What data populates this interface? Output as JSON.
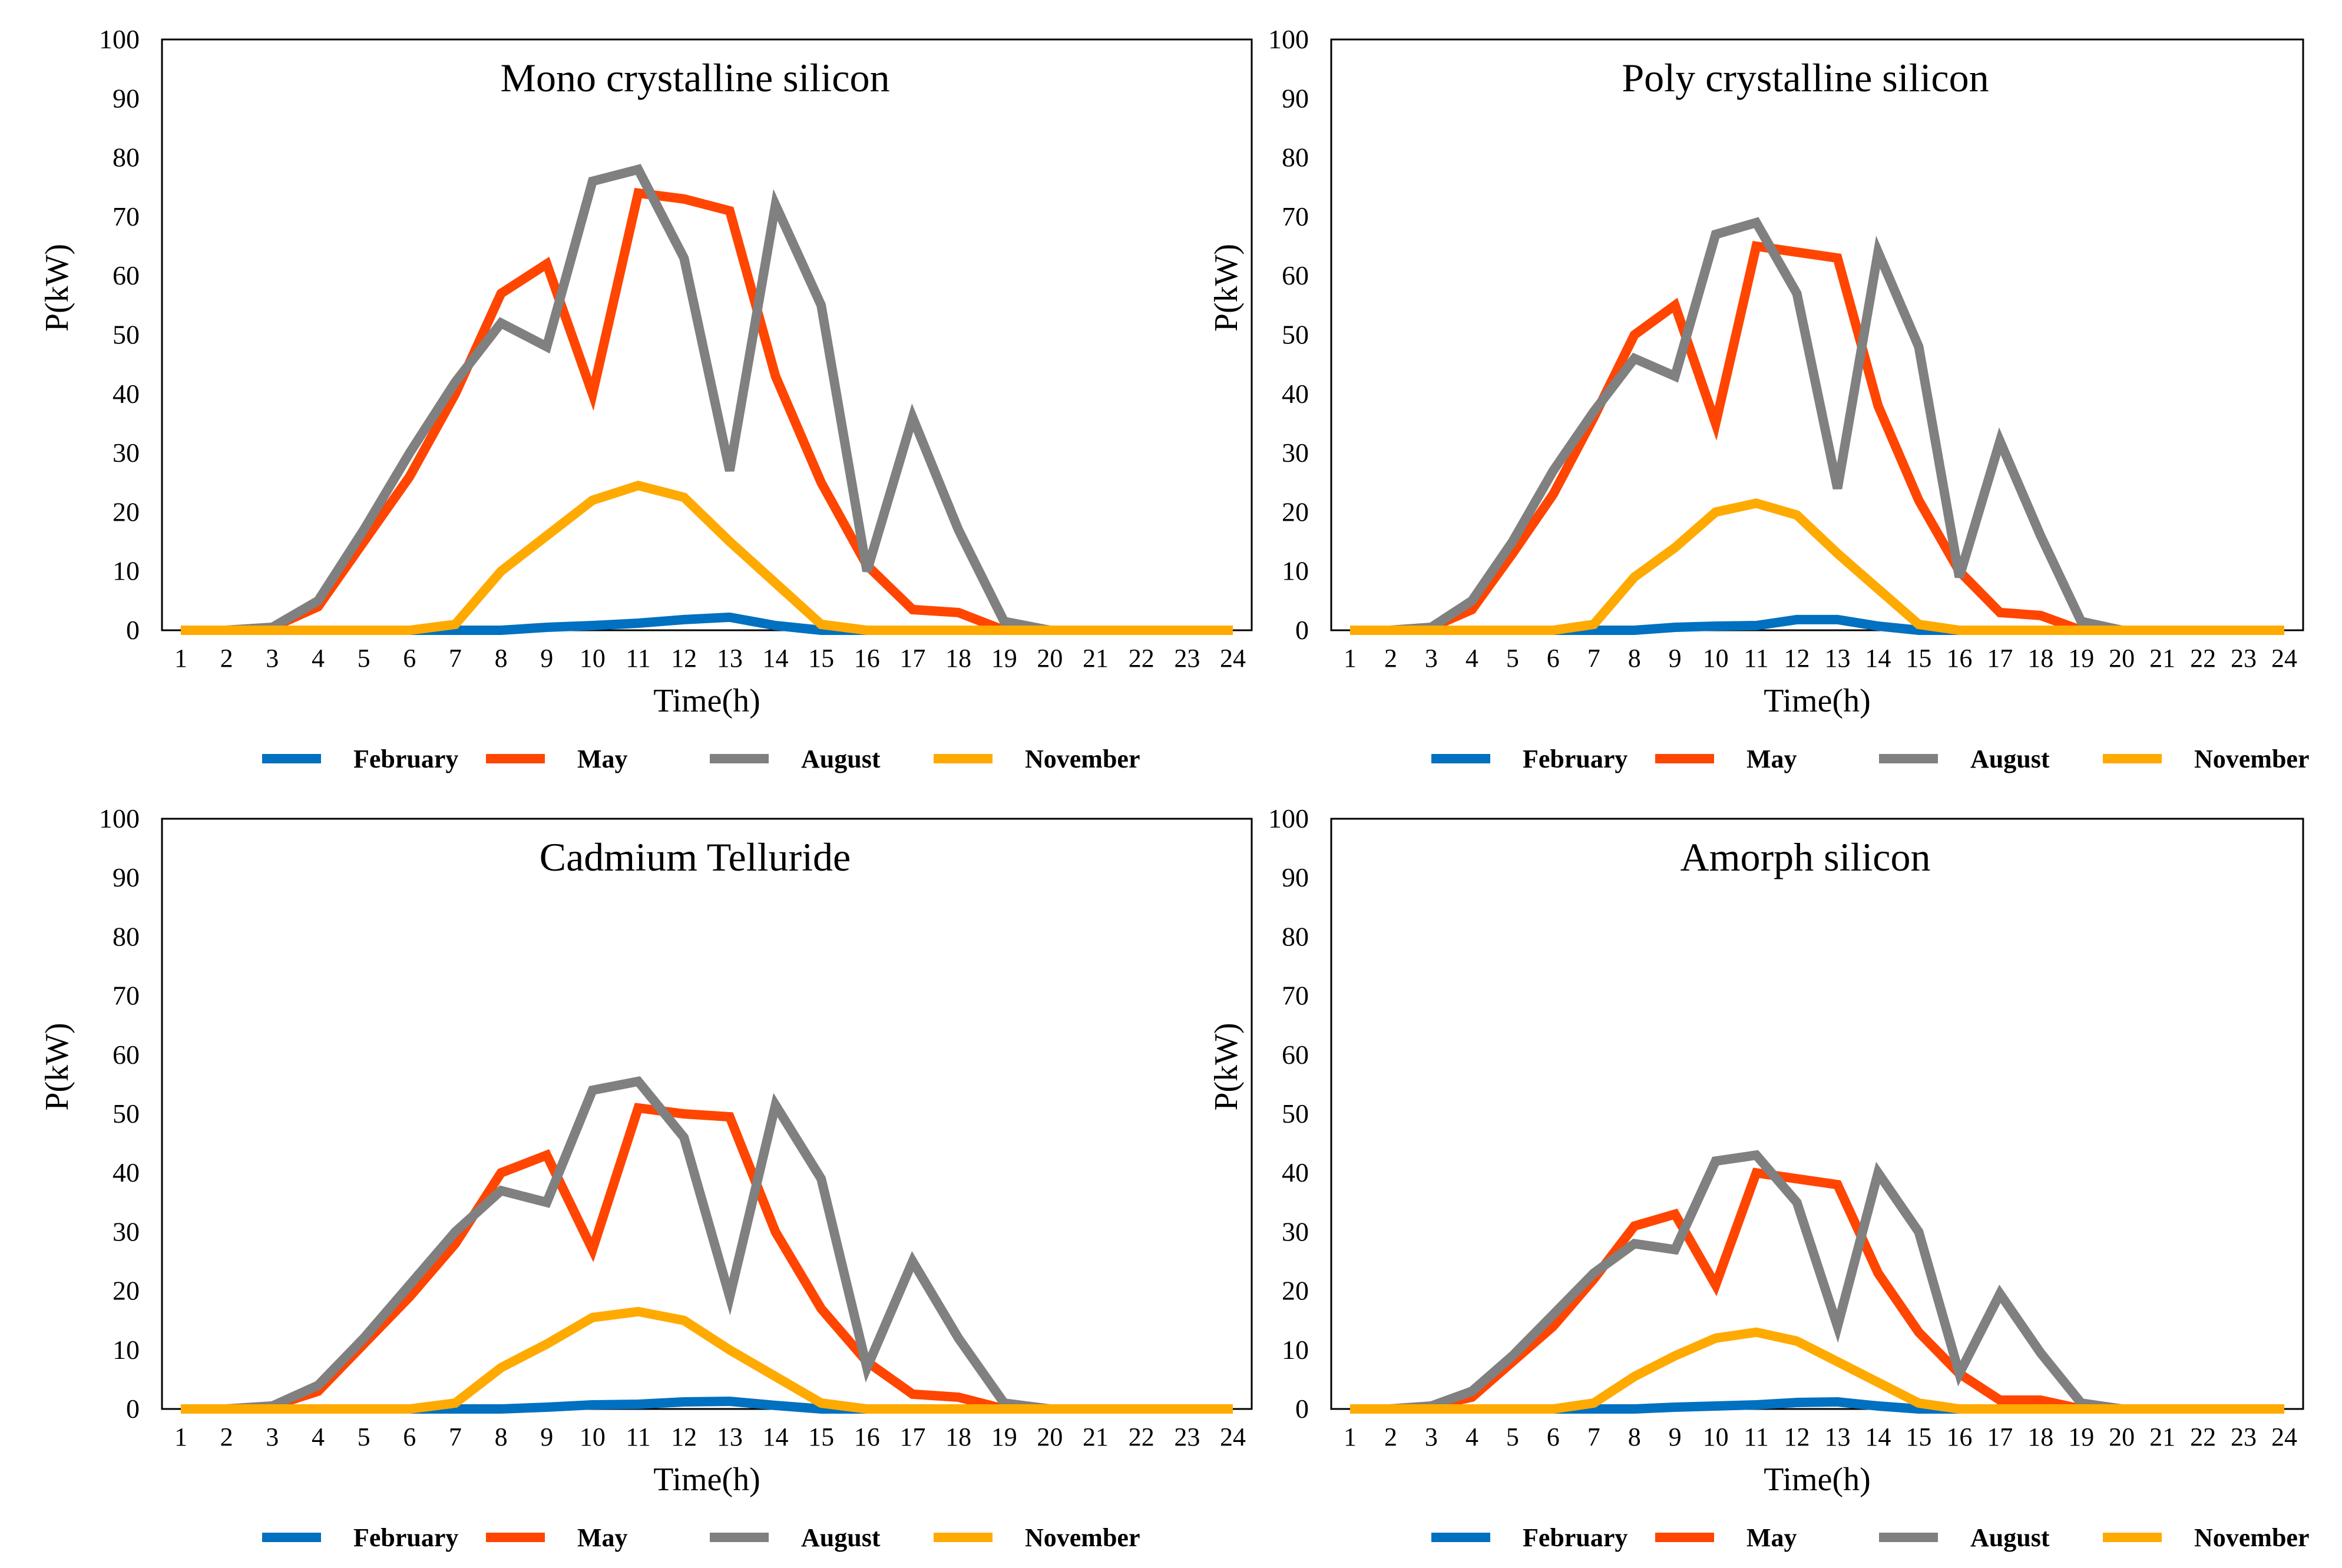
{
  "chart_data": [
    {
      "type": "line",
      "title": "Mono crystalline silicon",
      "xlabel": "Time(h)",
      "ylabel": "P(kW)",
      "ylim": [
        0,
        100
      ],
      "yticks": [
        "0",
        "10",
        "20",
        "30",
        "40",
        "50",
        "60",
        "70",
        "80",
        "90",
        "100"
      ],
      "categories": [
        "1",
        "2",
        "3",
        "4",
        "5",
        "6",
        "7",
        "8",
        "9",
        "10",
        "11",
        "12",
        "13",
        "14",
        "15",
        "16",
        "17",
        "18",
        "19",
        "20",
        "21",
        "22",
        "23",
        "24"
      ],
      "legend_position": "bottom",
      "series": [
        {
          "name": "February",
          "color": "#0070C0",
          "values": [
            0,
            0,
            0,
            0,
            0,
            0,
            0,
            0,
            0.5,
            0.8,
            1.2,
            1.8,
            2.2,
            0.8,
            0,
            0,
            0,
            0,
            0,
            0,
            0,
            0,
            0,
            0
          ]
        },
        {
          "name": "May",
          "color": "#FF4500",
          "values": [
            0,
            0,
            0.5,
            4,
            15,
            26,
            40,
            57,
            62,
            40,
            74,
            73,
            71,
            43,
            25,
            11,
            3.5,
            3,
            0,
            0,
            0,
            0,
            0,
            0
          ]
        },
        {
          "name": "August",
          "color": "#808080",
          "values": [
            0,
            0,
            0.5,
            5,
            17,
            30,
            42,
            52,
            48,
            76,
            78,
            63,
            27,
            72,
            55,
            10,
            36,
            17,
            1.5,
            0,
            0,
            0,
            0,
            0
          ]
        },
        {
          "name": "November",
          "color": "#FFAA00",
          "values": [
            0,
            0,
            0,
            0,
            0,
            0,
            1,
            10,
            16,
            22,
            24.5,
            22.5,
            15,
            8,
            1,
            0,
            0,
            0,
            0,
            0,
            0,
            0,
            0,
            0
          ]
        }
      ]
    },
    {
      "type": "line",
      "title": "Poly crystalline silicon",
      "xlabel": "Time(h)",
      "ylabel": "P(kW)",
      "ylim": [
        0,
        100
      ],
      "yticks": [
        "0",
        "10",
        "20",
        "30",
        "40",
        "50",
        "60",
        "70",
        "80",
        "90",
        "100"
      ],
      "categories": [
        "1",
        "2",
        "3",
        "4",
        "5",
        "6",
        "7",
        "8",
        "9",
        "10",
        "11",
        "12",
        "13",
        "14",
        "15",
        "16",
        "17",
        "18",
        "19",
        "20",
        "21",
        "22",
        "23",
        "24"
      ],
      "legend_position": "bottom",
      "series": [
        {
          "name": "February",
          "color": "#0070C0",
          "values": [
            0,
            0,
            0,
            0,
            0,
            0,
            0,
            0,
            0.5,
            0.7,
            0.8,
            1.8,
            1.8,
            0.7,
            0,
            0,
            0,
            0,
            0,
            0,
            0,
            0,
            0,
            0
          ]
        },
        {
          "name": "May",
          "color": "#FF4500",
          "values": [
            0,
            0,
            0.5,
            3.5,
            13,
            23,
            36,
            50,
            55,
            35,
            65,
            64,
            63,
            38,
            22,
            10,
            3,
            2.5,
            0,
            0,
            0,
            0,
            0,
            0
          ]
        },
        {
          "name": "August",
          "color": "#808080",
          "values": [
            0,
            0,
            0.5,
            5,
            15,
            27,
            37,
            46,
            43,
            67,
            69,
            57,
            24,
            64,
            48,
            9,
            32,
            16,
            1.5,
            0,
            0,
            0,
            0,
            0
          ]
        },
        {
          "name": "November",
          "color": "#FFAA00",
          "values": [
            0,
            0,
            0,
            0,
            0,
            0,
            1,
            9,
            14,
            20,
            21.5,
            19.5,
            13,
            7,
            1,
            0,
            0,
            0,
            0,
            0,
            0,
            0,
            0,
            0
          ]
        }
      ]
    },
    {
      "type": "line",
      "title": "Cadmium Telluride",
      "xlabel": "Time(h)",
      "ylabel": "P(kW)",
      "ylim": [
        0,
        100
      ],
      "yticks": [
        "0",
        "10",
        "20",
        "30",
        "40",
        "50",
        "60",
        "70",
        "80",
        "90",
        "100"
      ],
      "categories": [
        "1",
        "2",
        "3",
        "4",
        "5",
        "6",
        "7",
        "8",
        "9",
        "10",
        "11",
        "12",
        "13",
        "14",
        "15",
        "16",
        "17",
        "18",
        "19",
        "20",
        "21",
        "22",
        "23",
        "24"
      ],
      "legend_position": "bottom",
      "series": [
        {
          "name": "February",
          "color": "#0070C0",
          "values": [
            0,
            0,
            0,
            0,
            0,
            0,
            0,
            0,
            0.3,
            0.7,
            0.8,
            1.2,
            1.3,
            0.6,
            0,
            0,
            0,
            0,
            0,
            0,
            0,
            0,
            0,
            0
          ]
        },
        {
          "name": "May",
          "color": "#FF4500",
          "values": [
            0,
            0,
            0.5,
            3,
            11,
            19,
            28,
            40,
            43,
            27,
            51,
            50,
            49.5,
            30,
            17,
            8,
            2.5,
            2,
            0,
            0,
            0,
            0,
            0,
            0
          ]
        },
        {
          "name": "August",
          "color": "#808080",
          "values": [
            0,
            0,
            0.5,
            4,
            12,
            21,
            30,
            37,
            35,
            54,
            55.5,
            46,
            19,
            51.5,
            39,
            7,
            25,
            12,
            1,
            0,
            0,
            0,
            0,
            0
          ]
        },
        {
          "name": "November",
          "color": "#FFAA00",
          "values": [
            0,
            0,
            0,
            0,
            0,
            0,
            1,
            7,
            11,
            15.5,
            16.5,
            15,
            10,
            5.5,
            1,
            0,
            0,
            0,
            0,
            0,
            0,
            0,
            0,
            0
          ]
        }
      ]
    },
    {
      "type": "line",
      "title": "Amorph silicon",
      "xlabel": "Time(h)",
      "ylabel": "P(kW)",
      "ylim": [
        0,
        100
      ],
      "yticks": [
        "0",
        "10",
        "20",
        "30",
        "40",
        "50",
        "60",
        "70",
        "80",
        "90",
        "100"
      ],
      "categories": [
        "1",
        "2",
        "3",
        "4",
        "5",
        "6",
        "7",
        "8",
        "9",
        "10",
        "11",
        "12",
        "13",
        "14",
        "15",
        "16",
        "17",
        "18",
        "19",
        "20",
        "21",
        "22",
        "23",
        "24"
      ],
      "legend_position": "bottom",
      "series": [
        {
          "name": "February",
          "color": "#0070C0",
          "values": [
            0,
            0,
            0,
            0,
            0,
            0,
            0,
            0,
            0.3,
            0.5,
            0.7,
            1.1,
            1.2,
            0.5,
            0,
            0,
            0,
            0,
            0,
            0,
            0,
            0,
            0,
            0
          ]
        },
        {
          "name": "May",
          "color": "#FF4500",
          "values": [
            0,
            0,
            0.5,
            2,
            8,
            14,
            22,
            31,
            33,
            21,
            40,
            39,
            38,
            23,
            13,
            6,
            1.5,
            1.5,
            0,
            0,
            0,
            0,
            0,
            0
          ]
        },
        {
          "name": "August",
          "color": "#808080",
          "values": [
            0,
            0,
            0.5,
            3,
            9,
            16,
            23,
            28,
            27,
            42,
            43,
            35,
            14,
            40,
            30,
            6,
            19.5,
            9.5,
            1,
            0,
            0,
            0,
            0,
            0
          ]
        },
        {
          "name": "November",
          "color": "#FFAA00",
          "values": [
            0,
            0,
            0,
            0,
            0,
            0,
            1,
            5.5,
            9,
            12,
            13,
            11.5,
            8,
            4.5,
            1,
            0,
            0,
            0,
            0,
            0,
            0,
            0,
            0,
            0
          ]
        }
      ]
    }
  ]
}
